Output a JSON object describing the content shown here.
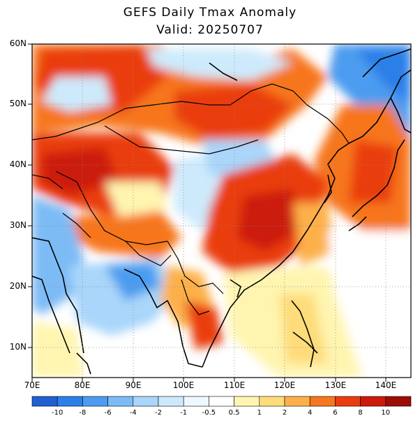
{
  "header": {
    "title": "GEFS Daily Tmax Anomaly",
    "valid": "Valid: 20250707"
  },
  "map": {
    "lat_ticks": [
      "60N",
      "50N",
      "40N",
      "30N",
      "20N",
      "10N"
    ],
    "lon_ticks": [
      "70E",
      "80E",
      "90E",
      "100E",
      "110E",
      "120E",
      "130E",
      "140E"
    ],
    "lat_range": [
      5,
      60
    ],
    "lon_range": [
      70,
      145
    ],
    "grid": "dotted"
  },
  "colorbar": {
    "labels": [
      "-10",
      "-8",
      "-6",
      "-4",
      "-2",
      "-1",
      "-0.5",
      "0.5",
      "1",
      "2",
      "4",
      "6",
      "8",
      "10"
    ],
    "colors": [
      "#1f5fd1",
      "#2c7fe8",
      "#4b9cf0",
      "#7dbbf5",
      "#a9d6fa",
      "#cdeafc",
      "#eef8ff",
      "#ffffff",
      "#fff5b0",
      "#fedc7a",
      "#fdb04a",
      "#f7761f",
      "#ea3c10",
      "#cc1a0b",
      "#9c0d06"
    ]
  }
}
